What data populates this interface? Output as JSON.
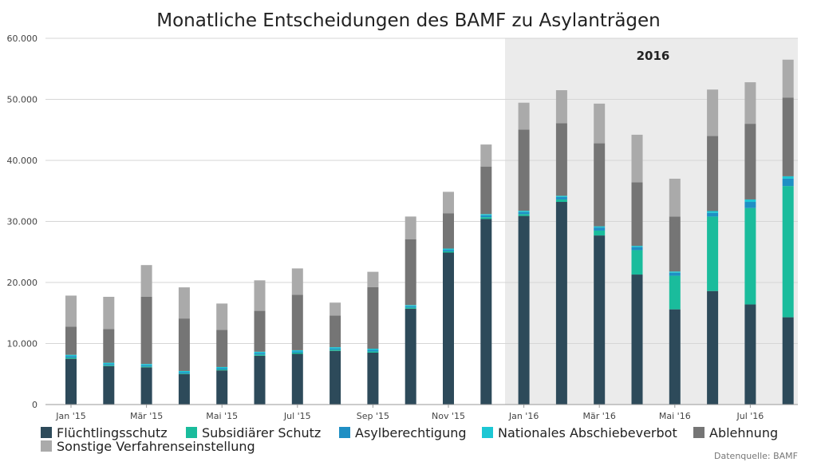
{
  "chart_data": {
    "type": "bar",
    "stacked": true,
    "title": "Monatliche Entscheidungen des BAMF zu Asylanträgen",
    "categories": [
      "Jan '15",
      "Feb '15",
      "Mär '15",
      "Apr '15",
      "Mai '15",
      "Jun '15",
      "Jul '15",
      "Aug '15",
      "Sep '15",
      "Okt '15",
      "Nov '15",
      "Dez '15",
      "Jan '16",
      "Feb '16",
      "Mär '16",
      "Apr '16",
      "Mai '16",
      "Jun '16",
      "Jul '16",
      "Aug '16"
    ],
    "x_tick_labels": [
      "Jan '15",
      "Mär '15",
      "Mai '15",
      "Jul '15",
      "Sep '15",
      "Nov '15",
      "Jan '16",
      "Mär '16",
      "Mai '16",
      "Jul '16"
    ],
    "x_tick_indices": [
      0,
      2,
      4,
      6,
      8,
      10,
      12,
      14,
      16,
      18
    ],
    "y_tick_labels": [
      "0",
      "10.000",
      "20.000",
      "30.000",
      "40.000",
      "50.000",
      "60.000"
    ],
    "y_tick_values": [
      0,
      10000,
      20000,
      30000,
      40000,
      50000,
      60000
    ],
    "ylim": [
      0,
      60000
    ],
    "highlight_band": {
      "label": "2016",
      "from_index": 12,
      "to_index": 19,
      "color": "#ebebeb"
    },
    "series": [
      {
        "name": "Flüchtlingsschutz",
        "color": "#2d4a5a",
        "values": [
          7500,
          6300,
          6100,
          5000,
          5600,
          8000,
          8300,
          8800,
          8500,
          15700,
          24900,
          30400,
          30900,
          33200,
          27700,
          21300,
          15600,
          18600,
          16400,
          14300
        ]
      },
      {
        "name": "Subsidiärer Schutz",
        "color": "#1abc9c",
        "values": [
          200,
          150,
          150,
          100,
          150,
          200,
          200,
          200,
          200,
          200,
          200,
          300,
          300,
          400,
          800,
          4000,
          5500,
          12200,
          15800,
          21500
        ]
      },
      {
        "name": "Asylberechtigung",
        "color": "#1f8fc4",
        "values": [
          250,
          200,
          200,
          200,
          200,
          250,
          200,
          200,
          250,
          200,
          250,
          300,
          350,
          400,
          500,
          500,
          500,
          600,
          1000,
          1200
        ]
      },
      {
        "name": "Nationales Abschiebeverbot",
        "color": "#1cc7d4",
        "values": [
          200,
          200,
          200,
          200,
          200,
          200,
          200,
          200,
          200,
          200,
          200,
          200,
          200,
          200,
          200,
          200,
          200,
          300,
          400,
          400
        ]
      },
      {
        "name": "Ablehnung",
        "color": "#757575",
        "values": [
          4600,
          5500,
          11000,
          8600,
          6100,
          6700,
          9100,
          5200,
          10100,
          10800,
          5800,
          7800,
          13300,
          11900,
          13600,
          10400,
          9000,
          12300,
          12400,
          12900
        ]
      },
      {
        "name": "Sonstige Verfahrenseinstellung",
        "color": "#aaaaaa",
        "values": [
          5100,
          5300,
          5200,
          5100,
          4300,
          5000,
          4300,
          2100,
          2500,
          3700,
          3500,
          3600,
          4400,
          5400,
          6500,
          7800,
          6200,
          7600,
          6800,
          6200
        ]
      }
    ],
    "source": "Datenquelle: BAMF"
  }
}
